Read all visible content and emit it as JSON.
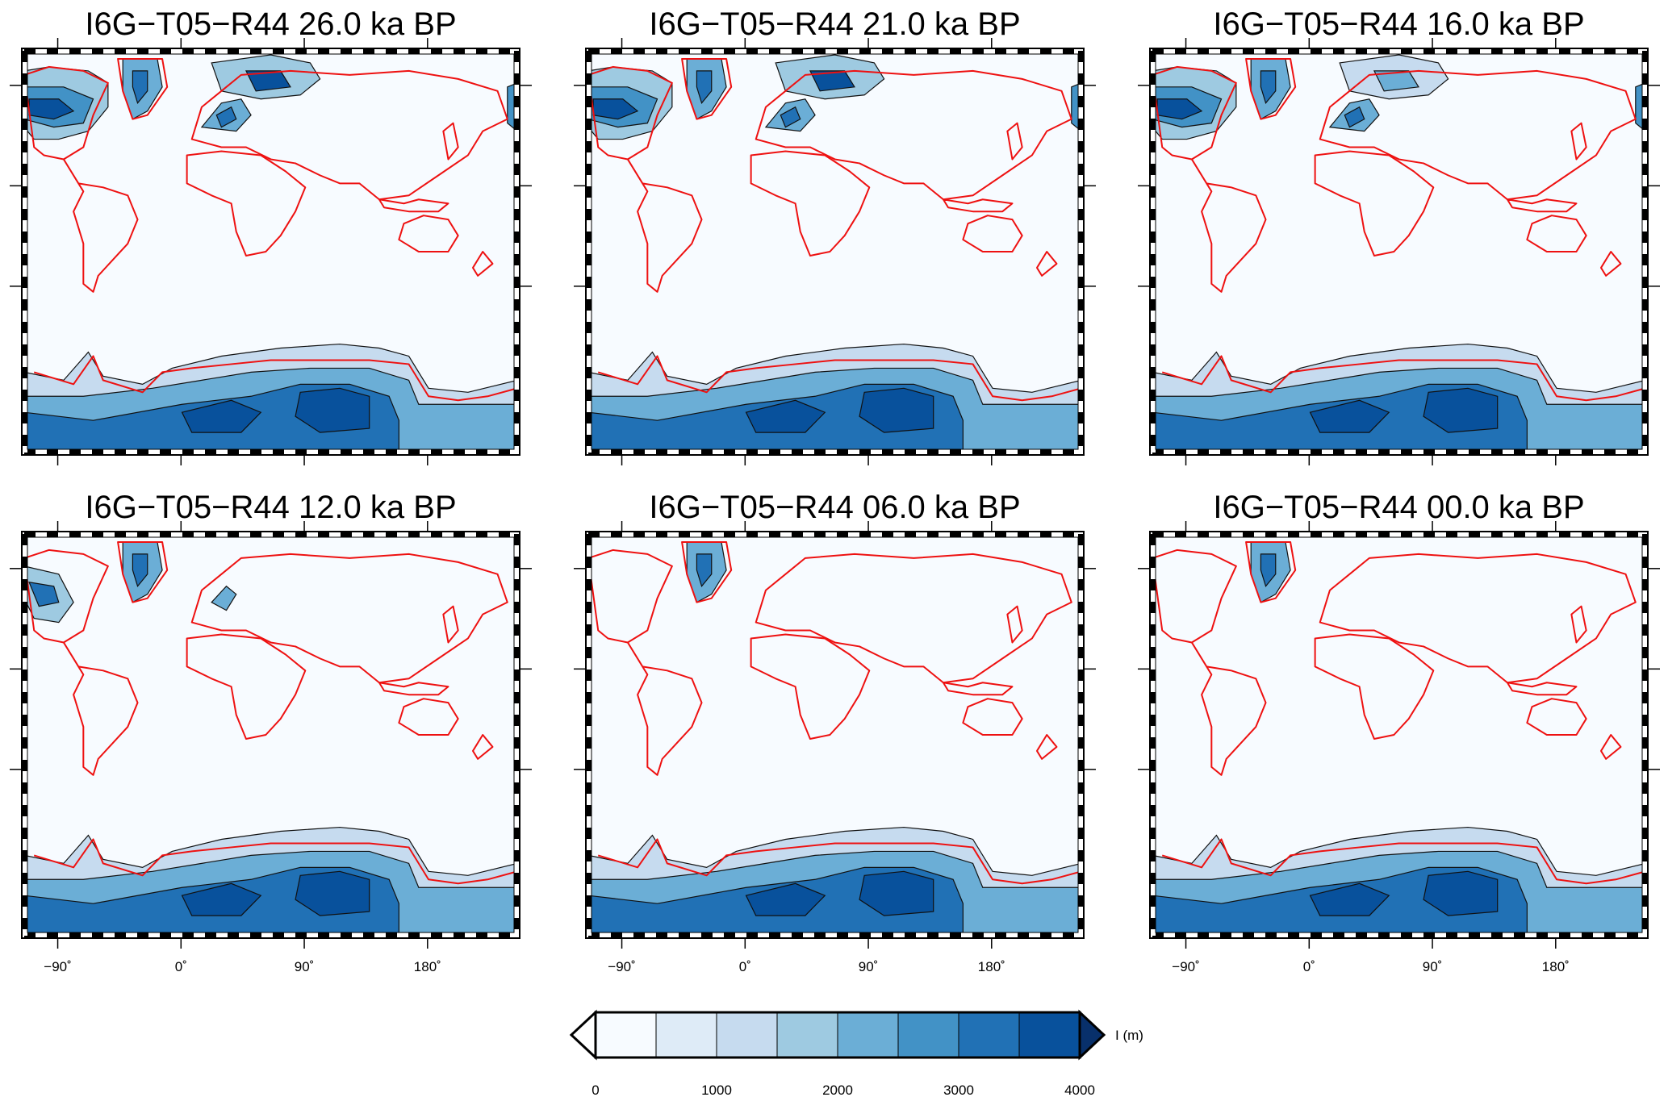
{
  "figure": {
    "panels": [
      {
        "title": "I6G−T05−R44 26.0 ka BP",
        "epoch_ka": 26.0,
        "ice_extent": "full"
      },
      {
        "title": "I6G−T05−R44 21.0 ka BP",
        "epoch_ka": 21.0,
        "ice_extent": "full"
      },
      {
        "title": "I6G−T05−R44 16.0 ka BP",
        "epoch_ka": 16.0,
        "ice_extent": "reduced"
      },
      {
        "title": "I6G−T05−R44 12.0 ka BP",
        "epoch_ka": 12.0,
        "ice_extent": "deglacial"
      },
      {
        "title": "I6G−T05−R44 06.0 ka BP",
        "epoch_ka": 6.0,
        "ice_extent": "modern"
      },
      {
        "title": "I6G−T05−R44 00.0 ka BP",
        "epoch_ka": 0.0,
        "ice_extent": "modern"
      }
    ],
    "x_ticks": [
      "−90˚",
      "0˚",
      "90˚",
      "180˚"
    ],
    "colorbar": {
      "label": "I (m)",
      "tick_labels": [
        "0",
        "1000",
        "2000",
        "3000",
        "4000"
      ],
      "range": [
        0,
        4000
      ],
      "colors": [
        "#f7fbff",
        "#deebf7",
        "#c6dbef",
        "#9ecae1",
        "#6baed6",
        "#4292c6",
        "#2171b5",
        "#08519c",
        "#08306b"
      ]
    },
    "coastline_color": "#ee1111",
    "contour_color": "#111111"
  }
}
